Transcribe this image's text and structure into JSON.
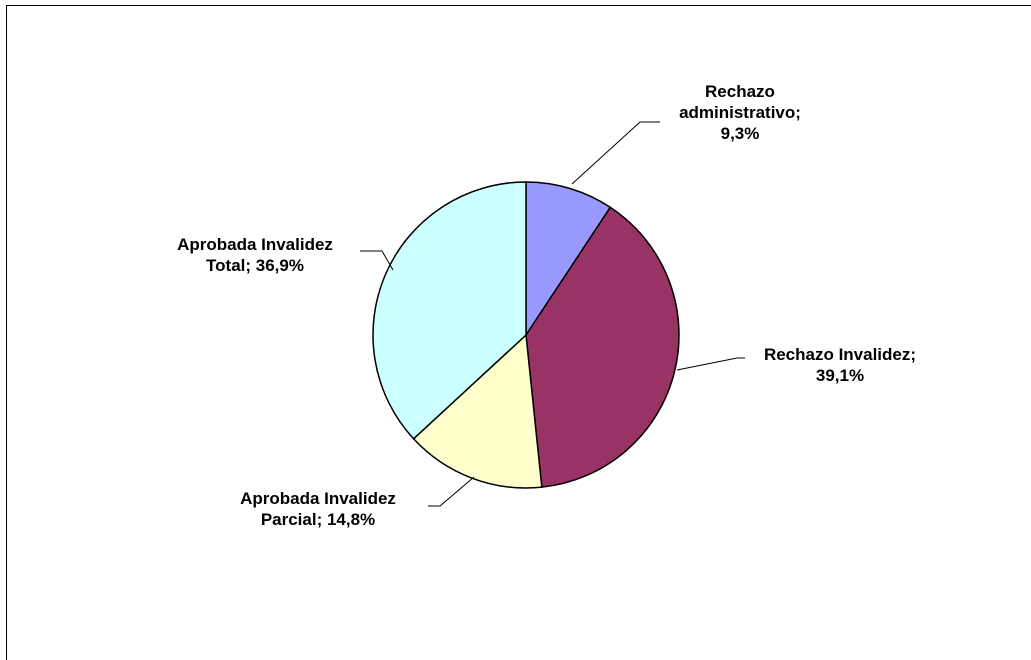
{
  "chart_data": {
    "type": "pie",
    "slices": [
      {
        "name": "Rechazo administrativo",
        "value": 9.3,
        "color": "#9999ff",
        "label_lines": [
          "Rechazo",
          "administrativo;",
          "9,3%"
        ]
      },
      {
        "name": "Rechazo Invalidez",
        "value": 39.1,
        "color": "#993366",
        "label_lines": [
          "Rechazo Invalidez;",
          "39,1%"
        ]
      },
      {
        "name": "Aprobada Invalidez Parcial",
        "value": 14.8,
        "color": "#ffffcc",
        "label_lines": [
          "Aprobada Invalidez",
          "Parcial; 14,8%"
        ]
      },
      {
        "name": "Aprobada Invalidez Total",
        "value": 36.9,
        "color": "#ccffff",
        "label_lines": [
          "Aprobada Invalidez",
          "Total; 36,9%"
        ]
      }
    ],
    "start_angle": "12 o'clock",
    "direction": "clockwise",
    "legend": "none",
    "data_labels": "outside-with-leader-lines"
  }
}
